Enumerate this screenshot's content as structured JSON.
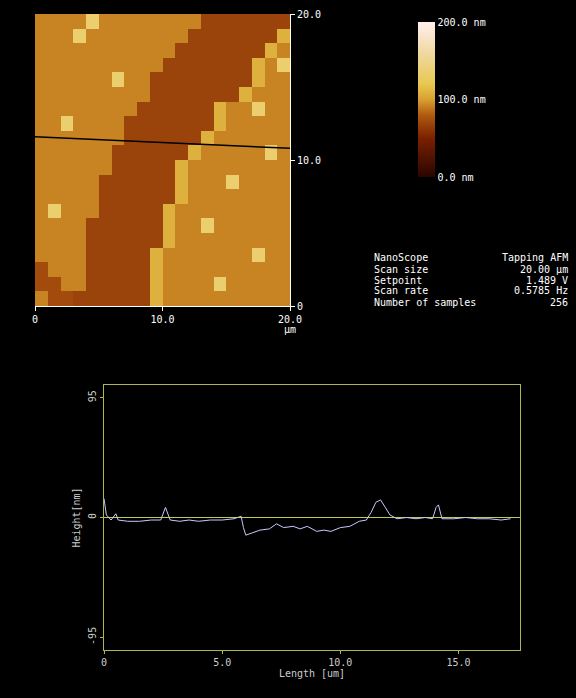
{
  "chart_data": [
    {
      "type": "heatmap",
      "x": [
        0.5,
        1.5,
        2.5,
        3.5,
        4.5,
        5.5,
        6.5,
        7.5,
        8.5,
        9.5,
        10.5,
        11.5,
        12.5,
        13.5,
        14.5,
        15.5,
        16.5,
        17.5,
        18.5,
        19.5
      ],
      "y": [
        0.5,
        1.5,
        2.5,
        3.5,
        4.5,
        5.5,
        6.5,
        7.5,
        8.5,
        9.5,
        10.5,
        11.5,
        12.5,
        13.5,
        14.5,
        15.5,
        16.5,
        17.5,
        18.5,
        19.5
      ],
      "z": [
        [
          92,
          72,
          72,
          68,
          68,
          68,
          68,
          68,
          68,
          108,
          92,
          92,
          92,
          92,
          92,
          92,
          92,
          92,
          92,
          92
        ],
        [
          72,
          72,
          92,
          92,
          68,
          68,
          68,
          68,
          68,
          108,
          92,
          92,
          92,
          92,
          135,
          92,
          92,
          92,
          92,
          92
        ],
        [
          72,
          92,
          92,
          92,
          68,
          68,
          68,
          68,
          68,
          108,
          92,
          92,
          92,
          92,
          92,
          92,
          92,
          92,
          92,
          92
        ],
        [
          92,
          92,
          92,
          92,
          68,
          68,
          68,
          68,
          68,
          108,
          92,
          92,
          92,
          92,
          92,
          92,
          92,
          135,
          92,
          92
        ],
        [
          92,
          92,
          92,
          92,
          68,
          68,
          68,
          68,
          68,
          68,
          108,
          92,
          92,
          92,
          92,
          92,
          92,
          92,
          92,
          92
        ],
        [
          92,
          92,
          92,
          92,
          68,
          68,
          68,
          68,
          68,
          68,
          108,
          92,
          92,
          135,
          92,
          92,
          92,
          92,
          92,
          92
        ],
        [
          92,
          135,
          92,
          92,
          92,
          68,
          68,
          68,
          68,
          68,
          108,
          92,
          92,
          92,
          92,
          92,
          92,
          92,
          92,
          92
        ],
        [
          92,
          92,
          92,
          92,
          92,
          68,
          68,
          68,
          68,
          68,
          68,
          108,
          92,
          92,
          92,
          92,
          92,
          92,
          92,
          92
        ],
        [
          92,
          92,
          92,
          92,
          92,
          68,
          68,
          68,
          68,
          68,
          68,
          108,
          92,
          92,
          92,
          135,
          92,
          92,
          92,
          92
        ],
        [
          92,
          92,
          92,
          92,
          92,
          92,
          68,
          68,
          68,
          68,
          68,
          108,
          92,
          92,
          92,
          92,
          92,
          92,
          92,
          92
        ],
        [
          92,
          92,
          92,
          92,
          92,
          92,
          68,
          68,
          68,
          68,
          68,
          68,
          108,
          92,
          92,
          92,
          92,
          92,
          135,
          92
        ],
        [
          92,
          92,
          92,
          92,
          92,
          92,
          92,
          68,
          68,
          68,
          68,
          68,
          68,
          108,
          92,
          92,
          92,
          92,
          92,
          92
        ],
        [
          92,
          92,
          135,
          92,
          92,
          92,
          92,
          68,
          68,
          68,
          68,
          68,
          68,
          68,
          108,
          92,
          92,
          92,
          92,
          92
        ],
        [
          92,
          92,
          92,
          92,
          92,
          92,
          92,
          92,
          68,
          68,
          68,
          68,
          68,
          68,
          108,
          92,
          92,
          135,
          92,
          92
        ],
        [
          92,
          92,
          92,
          92,
          92,
          92,
          92,
          92,
          92,
          68,
          68,
          68,
          68,
          68,
          68,
          68,
          108,
          92,
          92,
          92
        ],
        [
          92,
          92,
          92,
          92,
          92,
          92,
          135,
          92,
          92,
          68,
          68,
          68,
          68,
          68,
          68,
          68,
          68,
          108,
          92,
          92
        ],
        [
          92,
          92,
          92,
          92,
          92,
          92,
          92,
          92,
          92,
          92,
          68,
          68,
          68,
          68,
          68,
          68,
          68,
          108,
          92,
          135
        ],
        [
          92,
          92,
          92,
          92,
          92,
          92,
          92,
          92,
          92,
          92,
          92,
          68,
          68,
          68,
          68,
          68,
          68,
          68,
          108,
          92
        ],
        [
          92,
          92,
          92,
          135,
          92,
          92,
          92,
          92,
          92,
          92,
          92,
          92,
          68,
          68,
          68,
          68,
          68,
          68,
          68,
          108
        ],
        [
          92,
          92,
          92,
          92,
          135,
          92,
          92,
          92,
          92,
          92,
          92,
          92,
          92,
          68,
          68,
          68,
          68,
          68,
          68,
          68
        ]
      ],
      "xlim": [
        0,
        20
      ],
      "ylim": [
        0,
        20
      ],
      "xticks": [
        0,
        {
          "value": 10,
          "label": "10.0"
        },
        {
          "value": 20,
          "label": "20.0"
        }
      ],
      "yticks": [
        0,
        {
          "value": 10,
          "label": "10.0"
        },
        {
          "value": 20,
          "label": "20.0"
        }
      ],
      "xlabel": "µm",
      "colorbar_range": [
        0,
        200
      ],
      "colorbar_ticks": [
        {
          "value": 0,
          "label": "0.0 nm"
        },
        {
          "value": 100,
          "label": "100.0 nm"
        },
        {
          "value": 200,
          "label": "200.0 nm"
        }
      ],
      "section_line": {
        "x": [
          0,
          20
        ],
        "y": [
          11.6,
          10.8
        ],
        "color": "#000000"
      },
      "scan_info": [
        {
          "label": "NanoScope",
          "value": "Tapping AFM"
        },
        {
          "label": "Scan size",
          "value": "20.00 µm"
        },
        {
          "label": "Setpoint",
          "value": "1.489 V"
        },
        {
          "label": "Scan rate",
          "value": "0.5785 Hz"
        },
        {
          "label": "Number of samples",
          "value": "256"
        }
      ]
    },
    {
      "type": "line",
      "x": [
        0,
        0.1,
        0.3,
        0.5,
        0.6,
        1.0,
        1.5,
        2.0,
        2.4,
        2.6,
        2.8,
        3.2,
        3.6,
        4.0,
        4.5,
        5.0,
        5.5,
        5.8,
        5.9,
        6.0,
        6.3,
        6.6,
        7.0,
        7.3,
        7.6,
        8.0,
        8.3,
        8.6,
        9.0,
        9.3,
        9.6,
        10.0,
        10.4,
        10.8,
        11.1,
        11.3,
        11.5,
        11.7,
        11.9,
        12.1,
        12.4,
        12.8,
        13.2,
        13.6,
        13.9,
        14.05,
        14.15,
        14.3,
        14.8,
        15.3,
        15.8,
        16.3,
        16.8,
        17.2
      ],
      "values": [
        15,
        2,
        -2,
        3,
        -2,
        -3,
        -3,
        -2,
        -2,
        8,
        -2,
        -3,
        -2,
        -3,
        -2,
        -2,
        -1,
        1,
        -8,
        -14,
        -12,
        -10,
        -9,
        -5,
        -8,
        -7,
        -9,
        -7,
        -11,
        -10,
        -11,
        -8,
        -7,
        -3,
        -2,
        4,
        12,
        14,
        8,
        2,
        -1,
        0,
        -1,
        0,
        -1,
        8,
        10,
        -1,
        -1,
        0,
        -1,
        -1,
        -2,
        -1
      ],
      "color": "#c8c8ff",
      "xlim": [
        0,
        17.6
      ],
      "ylim": [
        -105,
        105
      ],
      "xticks": [
        0,
        {
          "value": 5,
          "label": "5.0"
        },
        {
          "value": 10,
          "label": "10.0"
        },
        {
          "value": 15,
          "label": "15.0"
        }
      ],
      "yticks": [
        -95,
        0,
        95
      ],
      "xlabel": "Length [um]",
      "ylabel": "Height[nm]",
      "grid": false
    }
  ]
}
